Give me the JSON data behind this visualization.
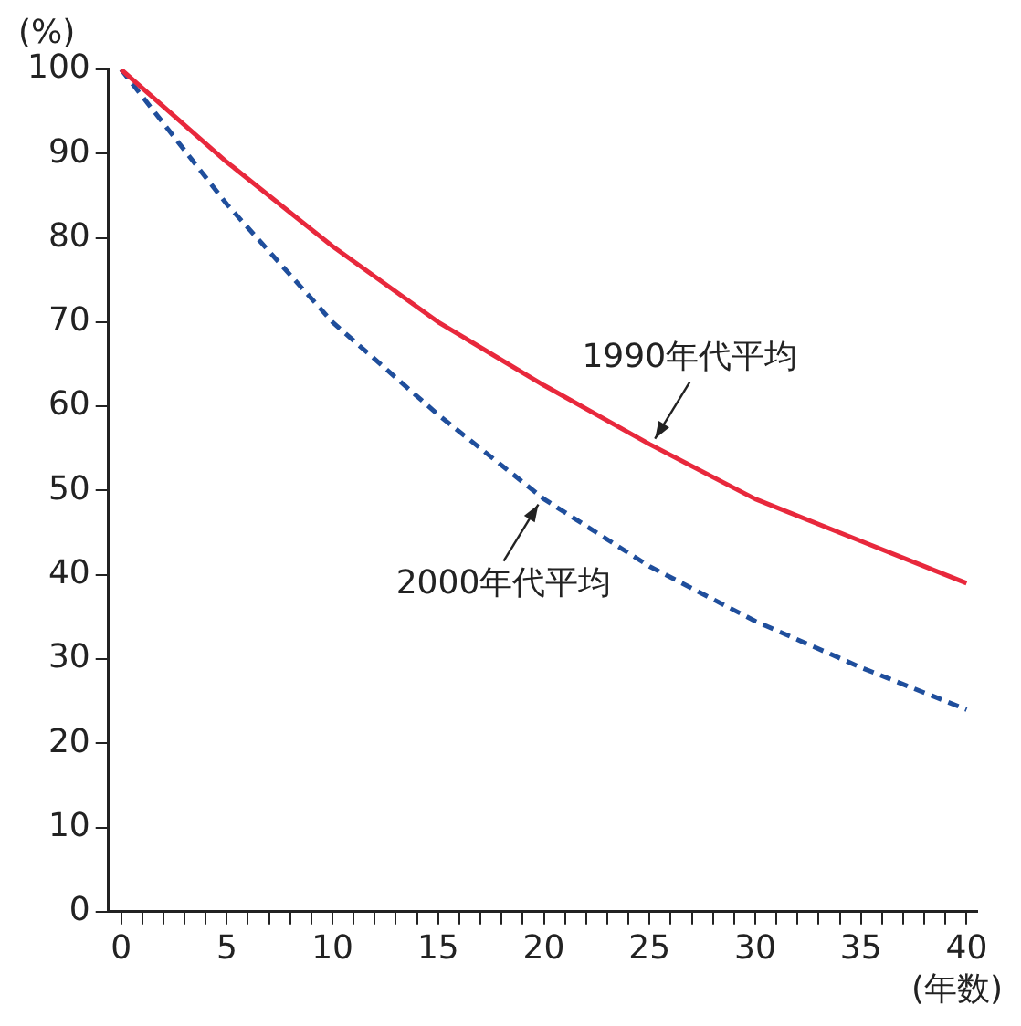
{
  "chart_data": {
    "type": "line",
    "ylabel": "(%)",
    "xlabel": "(年数)",
    "x": [
      0,
      5,
      10,
      15,
      20,
      25,
      30,
      35,
      40
    ],
    "series": [
      {
        "name": "1990年代平均",
        "color": "#e8283c",
        "line_style": "solid",
        "values": [
          100,
          89,
          79,
          70,
          62.5,
          55.5,
          49,
          44,
          39
        ]
      },
      {
        "name": "2000年代平均",
        "color": "#1f4e9c",
        "line_style": "dashed",
        "values": [
          100,
          84,
          70,
          59,
          49,
          41,
          34.5,
          29,
          24
        ]
      }
    ],
    "marker": "none",
    "legend": false,
    "xlim": [
      -0.6,
      40.5
    ],
    "xticks": [
      0,
      {
        "value": 1,
        "label": null
      },
      {
        "value": 2,
        "label": null
      },
      {
        "value": 3,
        "label": null
      },
      {
        "value": 4,
        "label": null
      },
      5,
      {
        "value": 6,
        "label": null
      },
      {
        "value": 7,
        "label": null
      },
      {
        "value": 8,
        "label": null
      },
      {
        "value": 9,
        "label": null
      },
      10,
      {
        "value": 11,
        "label": null
      },
      {
        "value": 12,
        "label": null
      },
      {
        "value": 13,
        "label": null
      },
      {
        "value": 14,
        "label": null
      },
      15,
      {
        "value": 16,
        "label": null
      },
      {
        "value": 17,
        "label": null
      },
      {
        "value": 18,
        "label": null
      },
      {
        "value": 19,
        "label": null
      },
      20,
      {
        "value": 21,
        "label": null
      },
      {
        "value": 22,
        "label": null
      },
      {
        "value": 23,
        "label": null
      },
      {
        "value": 24,
        "label": null
      },
      25,
      {
        "value": 26,
        "label": null
      },
      {
        "value": 27,
        "label": null
      },
      {
        "value": 28,
        "label": null
      },
      {
        "value": 29,
        "label": null
      },
      30,
      {
        "value": 31,
        "label": null
      },
      {
        "value": 32,
        "label": null
      },
      {
        "value": 33,
        "label": null
      },
      {
        "value": 34,
        "label": null
      },
      35,
      {
        "value": 36,
        "label": null
      },
      {
        "value": 37,
        "label": null
      },
      {
        "value": 38,
        "label": null
      },
      {
        "value": 39,
        "label": null
      },
      40
    ],
    "ylim": [
      0,
      100
    ],
    "yticks": [
      0,
      10,
      20,
      30,
      40,
      50,
      60,
      70,
      80,
      90,
      100
    ]
  }
}
